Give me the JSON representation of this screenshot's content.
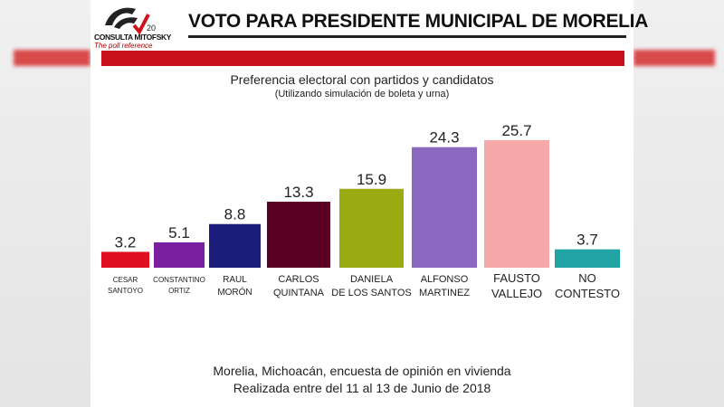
{
  "header": {
    "title": "VOTO PARA PRESIDENTE MUNICIPAL DE MORELIA",
    "logo_text": "CONSULTA MITOFSKY",
    "logo_tagline": "The poll reference",
    "logo_badge": "20"
  },
  "footer": {
    "line1": "Morelia, Michoacán, encuesta de opinión en vivienda",
    "line2": "Realizada entre del 11 al 13 de Junio de 2018"
  },
  "chart_data": {
    "type": "bar",
    "title": "Preferencia electoral con partidos y candidatos",
    "subtitle": "(Utilizando simulación de boleta y urna)",
    "categories": [
      [
        "CESAR",
        "SANTOYO"
      ],
      [
        "CONSTANTINO",
        "ORTIZ"
      ],
      [
        "RAUL",
        "MORÓN"
      ],
      [
        "CARLOS",
        "QUINTANA"
      ],
      [
        "DANIELA",
        "DE LOS SANTOS"
      ],
      [
        "ALFONSO",
        "MARTINEZ"
      ],
      [
        "FAUSTO",
        "VALLEJO"
      ],
      [
        "NO",
        "CONTESTO"
      ]
    ],
    "values": [
      3.2,
      5.1,
      8.8,
      13.3,
      15.9,
      24.3,
      25.7,
      3.7
    ],
    "colors": [
      "#e01020",
      "#7a1fa0",
      "#1c1c7c",
      "#5a0022",
      "#9aab12",
      "#8a68c0",
      "#f6a9a8",
      "#21a3a3"
    ],
    "ylim": [
      0,
      26
    ],
    "grid": false
  }
}
